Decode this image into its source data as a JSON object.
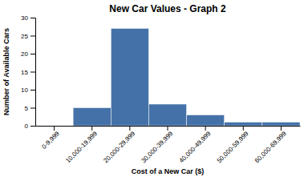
{
  "chart_data": {
    "type": "bar",
    "title": "New Car Values - Graph 2",
    "xlabel": "Cost of a New Car ($)",
    "ylabel": "Number of Available Cars",
    "categories": [
      "0-9,999",
      "10,000-19,999",
      "20,000-29,999",
      "30,000-39,999",
      "40,000-49,999",
      "50,000-59,999",
      "60,000-69,999"
    ],
    "values": [
      0,
      5,
      27,
      6,
      3,
      1,
      1
    ],
    "color": "#4472a8",
    "ylim": [
      0,
      30
    ],
    "yticks": [
      0,
      5,
      10,
      15,
      20,
      25,
      30
    ],
    "grid": false
  }
}
